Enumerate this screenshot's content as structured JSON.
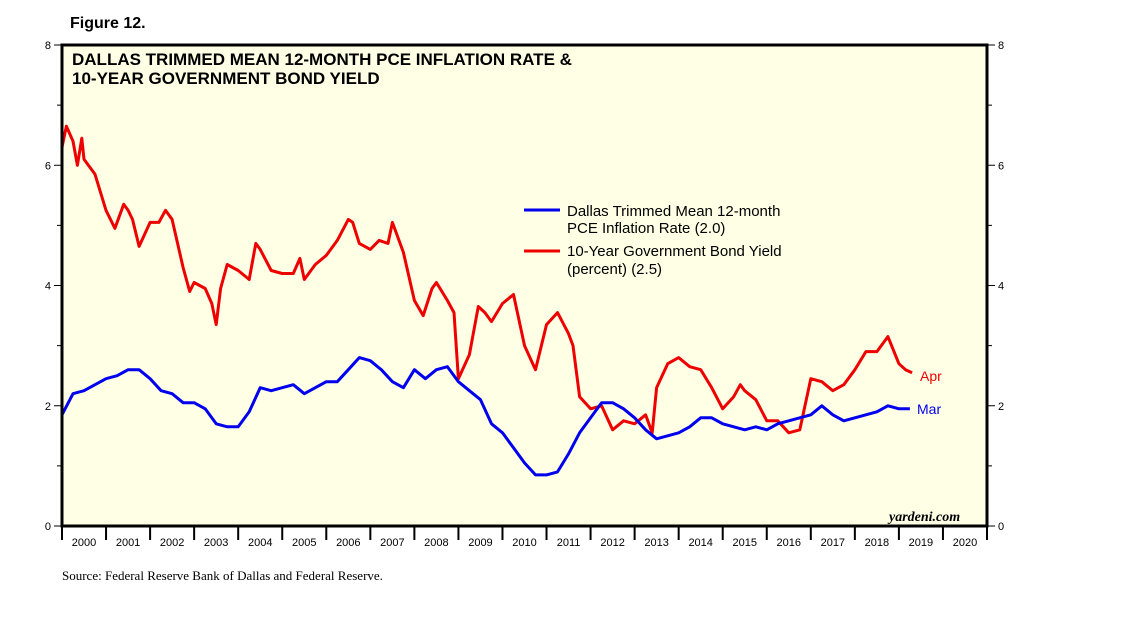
{
  "figure_label": "Figure 12.",
  "source": "Source: Federal Reserve Bank of Dallas and Federal Reserve.",
  "brand": "yardeni.com",
  "colors": {
    "series_pce": "#0000ee",
    "series_bond": "#ee0000",
    "plot_bg": "#ffffe6"
  },
  "chart_data": {
    "type": "line",
    "title_lines": [
      "DALLAS TRIMMED MEAN 12-MONTH PCE INFLATION RATE &",
      "10-YEAR GOVERNMENT BOND YIELD"
    ],
    "ylim": [
      0,
      8
    ],
    "y_ticks": [
      "0",
      "2",
      "4",
      "6",
      "8"
    ],
    "x_range": [
      2000,
      2021
    ],
    "x_tick_labels": [
      "2000",
      "2001",
      "2002",
      "2003",
      "2004",
      "2005",
      "2006",
      "2007",
      "2008",
      "2009",
      "2010",
      "2011",
      "2012",
      "2013",
      "2014",
      "2015",
      "2016",
      "2017",
      "2018",
      "2019",
      "2020"
    ],
    "series": [
      {
        "name": "pce",
        "legend_lines": [
          "Dallas Trimmed Mean 12-month",
          "PCE Inflation Rate (2.0)"
        ],
        "end_label": "Mar",
        "points": [
          [
            2000.0,
            1.85
          ],
          [
            2000.25,
            2.2
          ],
          [
            2000.5,
            2.25
          ],
          [
            2000.75,
            2.35
          ],
          [
            2001.0,
            2.45
          ],
          [
            2001.25,
            2.5
          ],
          [
            2001.5,
            2.6
          ],
          [
            2001.75,
            2.6
          ],
          [
            2002.0,
            2.45
          ],
          [
            2002.25,
            2.25
          ],
          [
            2002.5,
            2.2
          ],
          [
            2002.75,
            2.05
          ],
          [
            2003.0,
            2.05
          ],
          [
            2003.25,
            1.95
          ],
          [
            2003.5,
            1.7
          ],
          [
            2003.75,
            1.65
          ],
          [
            2004.0,
            1.65
          ],
          [
            2004.25,
            1.9
          ],
          [
            2004.5,
            2.3
          ],
          [
            2004.75,
            2.25
          ],
          [
            2005.0,
            2.3
          ],
          [
            2005.25,
            2.35
          ],
          [
            2005.5,
            2.2
          ],
          [
            2005.75,
            2.3
          ],
          [
            2006.0,
            2.4
          ],
          [
            2006.25,
            2.4
          ],
          [
            2006.5,
            2.6
          ],
          [
            2006.75,
            2.8
          ],
          [
            2007.0,
            2.75
          ],
          [
            2007.25,
            2.6
          ],
          [
            2007.5,
            2.4
          ],
          [
            2007.75,
            2.3
          ],
          [
            2008.0,
            2.6
          ],
          [
            2008.25,
            2.45
          ],
          [
            2008.5,
            2.6
          ],
          [
            2008.75,
            2.65
          ],
          [
            2009.0,
            2.4
          ],
          [
            2009.25,
            2.25
          ],
          [
            2009.5,
            2.1
          ],
          [
            2009.75,
            1.7
          ],
          [
            2010.0,
            1.55
          ],
          [
            2010.25,
            1.3
          ],
          [
            2010.5,
            1.05
          ],
          [
            2010.75,
            0.85
          ],
          [
            2011.0,
            0.85
          ],
          [
            2011.25,
            0.9
          ],
          [
            2011.5,
            1.2
          ],
          [
            2011.75,
            1.55
          ],
          [
            2012.0,
            1.8
          ],
          [
            2012.25,
            2.05
          ],
          [
            2012.5,
            2.05
          ],
          [
            2012.75,
            1.95
          ],
          [
            2013.0,
            1.8
          ],
          [
            2013.25,
            1.6
          ],
          [
            2013.5,
            1.45
          ],
          [
            2013.75,
            1.5
          ],
          [
            2014.0,
            1.55
          ],
          [
            2014.25,
            1.65
          ],
          [
            2014.5,
            1.8
          ],
          [
            2014.75,
            1.8
          ],
          [
            2015.0,
            1.7
          ],
          [
            2015.25,
            1.65
          ],
          [
            2015.5,
            1.6
          ],
          [
            2015.75,
            1.65
          ],
          [
            2016.0,
            1.6
          ],
          [
            2016.25,
            1.7
          ],
          [
            2016.5,
            1.75
          ],
          [
            2016.75,
            1.8
          ],
          [
            2017.0,
            1.85
          ],
          [
            2017.25,
            2.0
          ],
          [
            2017.5,
            1.85
          ],
          [
            2017.75,
            1.75
          ],
          [
            2018.0,
            1.8
          ],
          [
            2018.25,
            1.85
          ],
          [
            2018.5,
            1.9
          ],
          [
            2018.75,
            2.0
          ],
          [
            2019.0,
            1.95
          ],
          [
            2019.25,
            1.95
          ]
        ]
      },
      {
        "name": "bond",
        "legend_lines": [
          "10-Year Government Bond Yield",
          "(percent) (2.5)"
        ],
        "end_label": "Apr",
        "points": [
          [
            2000.0,
            6.3
          ],
          [
            2000.1,
            6.65
          ],
          [
            2000.25,
            6.4
          ],
          [
            2000.35,
            6.0
          ],
          [
            2000.45,
            6.45
          ],
          [
            2000.5,
            6.1
          ],
          [
            2000.75,
            5.85
          ],
          [
            2001.0,
            5.25
          ],
          [
            2001.2,
            4.95
          ],
          [
            2001.4,
            5.35
          ],
          [
            2001.5,
            5.25
          ],
          [
            2001.6,
            5.1
          ],
          [
            2001.75,
            4.65
          ],
          [
            2002.0,
            5.05
          ],
          [
            2002.2,
            5.05
          ],
          [
            2002.35,
            5.25
          ],
          [
            2002.5,
            5.1
          ],
          [
            2002.75,
            4.3
          ],
          [
            2002.9,
            3.9
          ],
          [
            2003.0,
            4.05
          ],
          [
            2003.25,
            3.95
          ],
          [
            2003.4,
            3.7
          ],
          [
            2003.5,
            3.35
          ],
          [
            2003.6,
            3.95
          ],
          [
            2003.75,
            4.35
          ],
          [
            2004.0,
            4.25
          ],
          [
            2004.25,
            4.1
          ],
          [
            2004.4,
            4.7
          ],
          [
            2004.5,
            4.6
          ],
          [
            2004.75,
            4.25
          ],
          [
            2005.0,
            4.2
          ],
          [
            2005.25,
            4.2
          ],
          [
            2005.4,
            4.45
          ],
          [
            2005.5,
            4.1
          ],
          [
            2005.75,
            4.35
          ],
          [
            2006.0,
            4.5
          ],
          [
            2006.25,
            4.75
          ],
          [
            2006.5,
            5.1
          ],
          [
            2006.6,
            5.05
          ],
          [
            2006.75,
            4.7
          ],
          [
            2007.0,
            4.6
          ],
          [
            2007.2,
            4.75
          ],
          [
            2007.4,
            4.7
          ],
          [
            2007.5,
            5.05
          ],
          [
            2007.75,
            4.55
          ],
          [
            2008.0,
            3.75
          ],
          [
            2008.2,
            3.5
          ],
          [
            2008.4,
            3.95
          ],
          [
            2008.5,
            4.05
          ],
          [
            2008.75,
            3.75
          ],
          [
            2008.9,
            3.55
          ],
          [
            2009.0,
            2.45
          ],
          [
            2009.25,
            2.85
          ],
          [
            2009.45,
            3.65
          ],
          [
            2009.6,
            3.55
          ],
          [
            2009.75,
            3.4
          ],
          [
            2010.0,
            3.7
          ],
          [
            2010.25,
            3.85
          ],
          [
            2010.5,
            3.0
          ],
          [
            2010.75,
            2.6
          ],
          [
            2011.0,
            3.35
          ],
          [
            2011.25,
            3.55
          ],
          [
            2011.5,
            3.2
          ],
          [
            2011.6,
            3.0
          ],
          [
            2011.75,
            2.15
          ],
          [
            2012.0,
            1.95
          ],
          [
            2012.25,
            2.0
          ],
          [
            2012.5,
            1.6
          ],
          [
            2012.75,
            1.75
          ],
          [
            2013.0,
            1.7
          ],
          [
            2013.25,
            1.85
          ],
          [
            2013.4,
            1.55
          ],
          [
            2013.5,
            2.3
          ],
          [
            2013.75,
            2.7
          ],
          [
            2014.0,
            2.8
          ],
          [
            2014.25,
            2.65
          ],
          [
            2014.5,
            2.6
          ],
          [
            2014.75,
            2.3
          ],
          [
            2015.0,
            1.95
          ],
          [
            2015.25,
            2.15
          ],
          [
            2015.4,
            2.35
          ],
          [
            2015.5,
            2.25
          ],
          [
            2015.75,
            2.1
          ],
          [
            2016.0,
            1.75
          ],
          [
            2016.25,
            1.75
          ],
          [
            2016.5,
            1.55
          ],
          [
            2016.75,
            1.6
          ],
          [
            2017.0,
            2.45
          ],
          [
            2017.25,
            2.4
          ],
          [
            2017.5,
            2.25
          ],
          [
            2017.75,
            2.35
          ],
          [
            2018.0,
            2.6
          ],
          [
            2018.25,
            2.9
          ],
          [
            2018.5,
            2.9
          ],
          [
            2018.75,
            3.15
          ],
          [
            2019.0,
            2.7
          ],
          [
            2019.15,
            2.6
          ],
          [
            2019.3,
            2.55
          ]
        ]
      }
    ]
  }
}
